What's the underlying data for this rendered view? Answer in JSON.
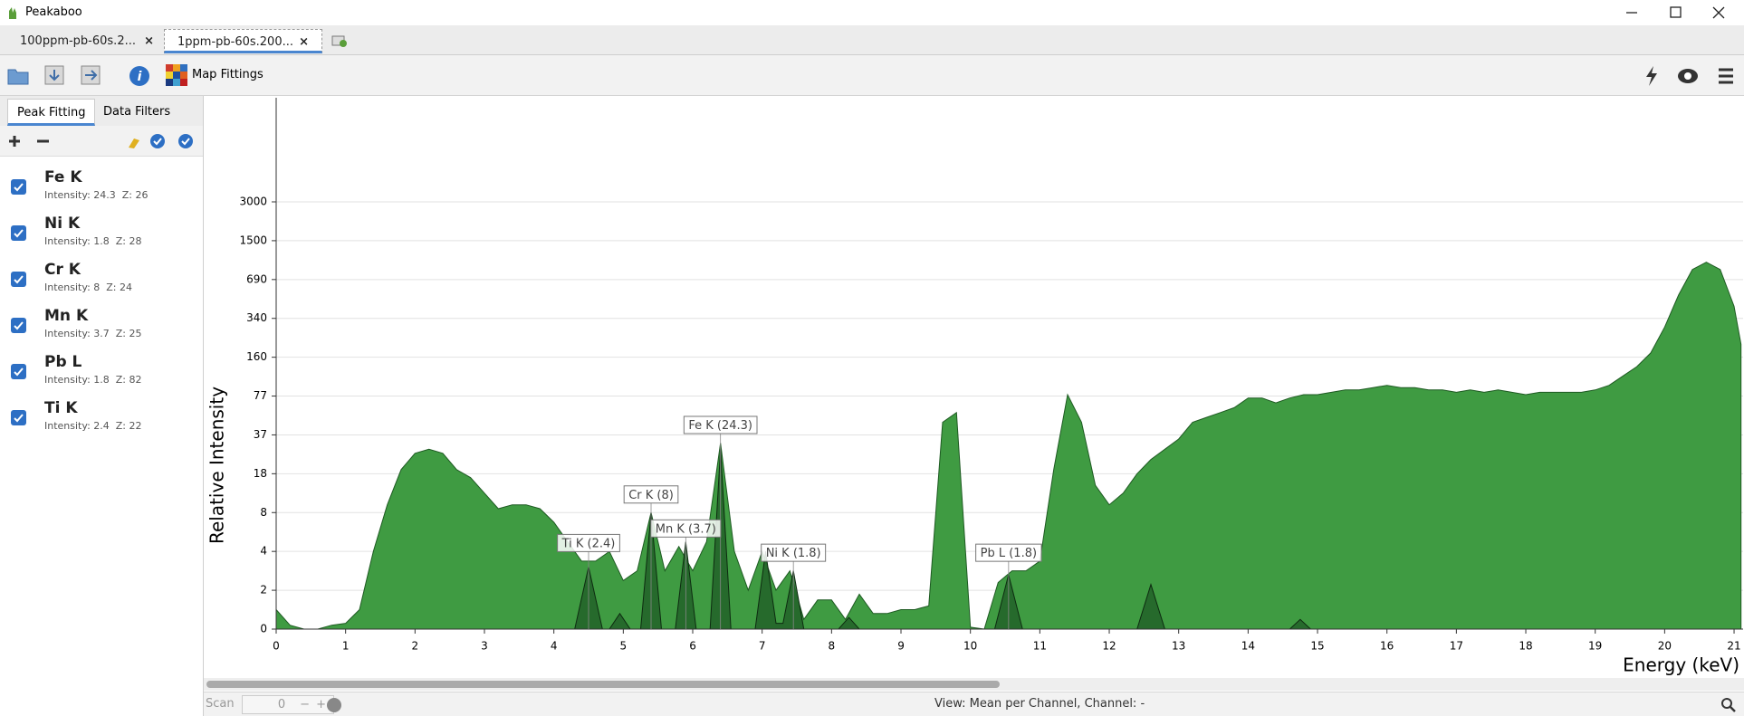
{
  "window": {
    "title": "Peakaboo"
  },
  "tabs": [
    "100ppm-pb-60s.2...",
    "1ppm-pb-60s.200..."
  ],
  "toolbar": {
    "map_button": "Map Fittings"
  },
  "sidebar": {
    "tabs": [
      "Peak Fitting",
      "Data Filters"
    ],
    "fittings": [
      {
        "name": "Fe K",
        "detail": "Intensity: 24.3  Z: 26"
      },
      {
        "name": "Ni K",
        "detail": "Intensity: 1.8  Z: 28"
      },
      {
        "name": "Cr K",
        "detail": "Intensity: 8  Z: 24"
      },
      {
        "name": "Mn K",
        "detail": "Intensity: 3.7  Z: 25"
      },
      {
        "name": "Pb L",
        "detail": "Intensity: 1.8  Z: 82"
      },
      {
        "name": "Ti K",
        "detail": "Intensity: 2.4  Z: 22"
      }
    ]
  },
  "status": {
    "scan_label": "Scan",
    "scan_value": "0",
    "view": "View: Mean per Channel,  Channel: -"
  },
  "chart_data": {
    "type": "area",
    "x_label": "Energy (keV)",
    "y_label": "Relative Intensity",
    "xlim": [
      0,
      21.13
    ],
    "xticks": [
      0,
      1,
      2,
      3,
      4,
      5,
      6,
      7,
      8,
      9,
      10,
      11,
      12,
      13,
      14,
      15,
      16,
      17,
      18,
      19,
      20,
      21
    ],
    "ylim": [
      0,
      3000
    ],
    "yticks": [
      0,
      2,
      4,
      8,
      18,
      37,
      77,
      160,
      340,
      690,
      1500,
      3000
    ],
    "grid": true,
    "series": [
      {
        "name": "Spectrum",
        "color": "#3f9b42",
        "x": [
          0,
          0.2,
          0.4,
          0.6,
          0.8,
          1.0,
          1.2,
          1.4,
          1.6,
          1.8,
          2.0,
          2.2,
          2.4,
          2.6,
          2.8,
          3.0,
          3.2,
          3.4,
          3.6,
          3.8,
          4.0,
          4.2,
          4.4,
          4.6,
          4.8,
          5.0,
          5.2,
          5.4,
          5.6,
          5.8,
          6.0,
          6.2,
          6.4,
          6.6,
          6.8,
          7.0,
          7.2,
          7.4,
          7.6,
          7.8,
          8.0,
          8.2,
          8.4,
          8.6,
          8.8,
          9.0,
          9.2,
          9.4,
          9.6,
          9.8,
          10.0,
          10.2,
          10.4,
          10.6,
          10.8,
          11.0,
          11.2,
          11.4,
          11.6,
          11.8,
          12.0,
          12.2,
          12.4,
          12.6,
          12.8,
          13.0,
          13.2,
          13.4,
          13.6,
          13.8,
          14.0,
          14.2,
          14.4,
          14.6,
          14.8,
          15.0,
          15.2,
          15.4,
          15.6,
          15.8,
          16.0,
          16.2,
          16.4,
          16.6,
          16.8,
          17.0,
          17.2,
          17.4,
          17.6,
          17.8,
          18.0,
          18.2,
          18.4,
          18.6,
          18.8,
          19.0,
          19.2,
          19.4,
          19.6,
          19.8,
          20.0,
          20.2,
          20.4,
          20.6,
          20.8,
          21.0,
          21.1
        ],
        "values": [
          1,
          0.2,
          0,
          0,
          0.2,
          0.3,
          1,
          4,
          10,
          20,
          28,
          30,
          28,
          20,
          17,
          13,
          9,
          10,
          10,
          9,
          7,
          5,
          3.5,
          3.5,
          4,
          2.5,
          3,
          8,
          3,
          4.5,
          3,
          5,
          33,
          4,
          2,
          4,
          2,
          3,
          0.5,
          1.5,
          1.5,
          0.5,
          1.8,
          0.8,
          0.8,
          1,
          1,
          1.2,
          50,
          60,
          0.1,
          0,
          2.4,
          3,
          3,
          3.5,
          20,
          80,
          50,
          15,
          10,
          13,
          18,
          25,
          30,
          35,
          50,
          55,
          60,
          65,
          75,
          75,
          70,
          75,
          80,
          80,
          85,
          90,
          90,
          95,
          100,
          95,
          95,
          90,
          90,
          85,
          90,
          85,
          90,
          85,
          80,
          85,
          85,
          85,
          85,
          90,
          100,
          120,
          140,
          180,
          300,
          550,
          900,
          1050,
          900,
          450,
          220
        ]
      },
      {
        "name": "Fitted Peaks",
        "color": "#24652a",
        "x": [
          4.3,
          4.5,
          4.7,
          4.8,
          4.95,
          5.1,
          5.25,
          5.4,
          5.55,
          5.75,
          5.9,
          6.05,
          6.25,
          6.4,
          6.55,
          6.9,
          7.05,
          7.2,
          7.3,
          7.45,
          7.6,
          8.1,
          8.25,
          8.4,
          10.35,
          10.55,
          10.75,
          12.4,
          12.6,
          12.8,
          14.6,
          14.75,
          14.9
        ],
        "values": [
          0,
          3.2,
          0,
          0,
          0.8,
          0,
          0,
          8,
          0,
          0,
          5,
          0,
          0,
          30,
          0,
          0,
          4,
          0.3,
          0.3,
          3,
          0,
          0,
          0.6,
          0,
          0,
          2.8,
          0,
          0,
          2.3,
          0,
          0,
          0.5,
          0
        ]
      }
    ],
    "annotations": [
      {
        "text": "Ti K (2.4)",
        "x": 4.5
      },
      {
        "text": "Cr K (8)",
        "x": 5.4
      },
      {
        "text": "Mn K (3.7)",
        "x": 5.9
      },
      {
        "text": "Fe K (24.3)",
        "x": 6.4
      },
      {
        "text": "Ni K (1.8)",
        "x": 7.45
      },
      {
        "text": "Pb L (1.8)",
        "x": 10.55
      }
    ]
  }
}
